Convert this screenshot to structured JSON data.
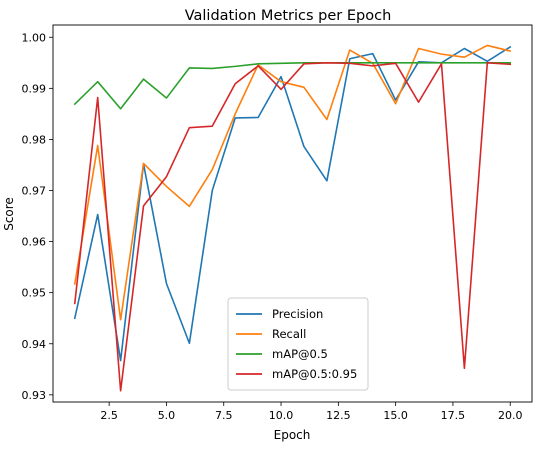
{
  "chart_data": {
    "type": "line",
    "title": "Validation Metrics per Epoch",
    "xlabel": "Epoch",
    "ylabel": "Score",
    "xlim": [
      0.05,
      20.95
    ],
    "ylim": [
      0.9286,
      1.0024
    ],
    "xticks": [
      2.5,
      5.0,
      7.5,
      10.0,
      12.5,
      15.0,
      17.5,
      20.0
    ],
    "xtick_labels": [
      "2.5",
      "5.0",
      "7.5",
      "10.0",
      "12.5",
      "15.0",
      "17.5",
      "20.0"
    ],
    "yticks": [
      0.93,
      0.94,
      0.95,
      0.96,
      0.97,
      0.98,
      0.99,
      1.0
    ],
    "ytick_labels": [
      "0.93",
      "0.94",
      "0.95",
      "0.96",
      "0.97",
      "0.98",
      "0.99",
      "1.00"
    ],
    "grid": false,
    "legend_position": "lower center",
    "x": [
      1,
      2,
      3,
      4,
      5,
      6,
      7,
      8,
      9,
      10,
      11,
      12,
      13,
      14,
      15,
      16,
      17,
      18,
      19,
      20
    ],
    "series": [
      {
        "name": "Precision",
        "color": "#1f77b4",
        "values": [
          0.945,
          0.9653,
          0.9367,
          0.9752,
          0.9518,
          0.9401,
          0.97,
          0.9842,
          0.9843,
          0.9923,
          0.9786,
          0.9719,
          0.9958,
          0.9968,
          0.9877,
          0.9952,
          0.995,
          0.9978,
          0.9953,
          0.9981
        ]
      },
      {
        "name": "Recall",
        "color": "#ff7f0e",
        "values": [
          0.9517,
          0.9788,
          0.9447,
          0.9753,
          0.9708,
          0.9669,
          0.9741,
          0.985,
          0.9946,
          0.9913,
          0.9902,
          0.9839,
          0.9975,
          0.9949,
          0.987,
          0.9978,
          0.9967,
          0.9961,
          0.9984,
          0.9973
        ]
      },
      {
        "name": "mAP@0.5",
        "color": "#2ca02c",
        "values": [
          0.9869,
          0.9913,
          0.986,
          0.9918,
          0.9881,
          0.994,
          0.9939,
          0.9943,
          0.9948,
          0.9949,
          0.995,
          0.995,
          0.995,
          0.995,
          0.995,
          0.995,
          0.995,
          0.995,
          0.995,
          0.995
        ]
      },
      {
        "name": "mAP@0.5:0.95",
        "color": "#d62728",
        "values": [
          0.9479,
          0.9882,
          0.9308,
          0.967,
          0.9727,
          0.9823,
          0.9826,
          0.9909,
          0.9944,
          0.9898,
          0.9948,
          0.995,
          0.9949,
          0.9944,
          0.9949,
          0.9873,
          0.9948,
          0.9352,
          0.995,
          0.9947
        ]
      }
    ]
  }
}
